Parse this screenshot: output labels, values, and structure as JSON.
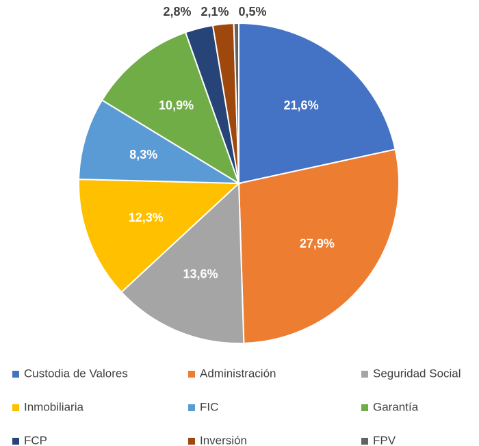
{
  "chart_data": {
    "type": "pie",
    "categories": [
      "Custodia de Valores",
      "Administración",
      "Seguridad Social",
      "Inmobiliaria",
      "FIC",
      "Garantía",
      "FCP",
      "Inversión",
      "FPV"
    ],
    "values": [
      21.6,
      27.9,
      13.6,
      12.3,
      8.3,
      10.9,
      2.8,
      2.1,
      0.5
    ],
    "value_labels": [
      "21,6%",
      "27,9%",
      "13,6%",
      "12,3%",
      "8,3%",
      "10,9%",
      "2,8%",
      "2,1%",
      "0,5%"
    ],
    "colors": [
      "#4472c4",
      "#ed7d31",
      "#a5a5a5",
      "#ffc000",
      "#5b9bd5",
      "#70ad47",
      "#264478",
      "#9e480e",
      "#636363"
    ],
    "legend": "bottom"
  }
}
